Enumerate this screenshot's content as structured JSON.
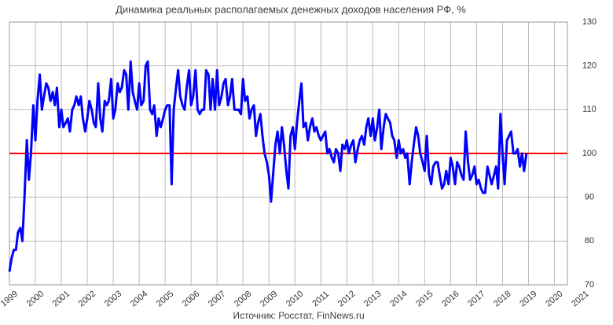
{
  "chart_data": {
    "type": "line",
    "title": "Динамика реальных располагаемых денежных доходов населения РФ, %",
    "source": "Источник: Росстат, FinNews.ru",
    "x": [
      1999,
      1999.08,
      1999.17,
      1999.25,
      1999.33,
      1999.42,
      1999.5,
      1999.58,
      1999.67,
      1999.75,
      1999.83,
      1999.92,
      2000,
      2000.08,
      2000.17,
      2000.25,
      2000.33,
      2000.42,
      2000.5,
      2000.58,
      2000.67,
      2000.75,
      2000.83,
      2000.92,
      2001,
      2001.08,
      2001.17,
      2001.25,
      2001.33,
      2001.42,
      2001.5,
      2001.58,
      2001.67,
      2001.75,
      2001.83,
      2001.92,
      2002,
      2002.08,
      2002.17,
      2002.25,
      2002.33,
      2002.42,
      2002.5,
      2002.58,
      2002.67,
      2002.75,
      2002.83,
      2002.92,
      2003,
      2003.08,
      2003.17,
      2003.25,
      2003.33,
      2003.42,
      2003.5,
      2003.58,
      2003.67,
      2003.75,
      2003.83,
      2003.92,
      2004,
      2004.08,
      2004.17,
      2004.25,
      2004.33,
      2004.42,
      2004.5,
      2004.58,
      2004.67,
      2004.75,
      2004.83,
      2004.92,
      2005,
      2005.08,
      2005.17,
      2005.25,
      2005.33,
      2005.42,
      2005.5,
      2005.58,
      2005.67,
      2005.75,
      2005.83,
      2005.92,
      2006,
      2006.08,
      2006.17,
      2006.25,
      2006.33,
      2006.42,
      2006.5,
      2006.58,
      2006.67,
      2006.75,
      2006.83,
      2006.92,
      2007,
      2007.08,
      2007.17,
      2007.25,
      2007.33,
      2007.42,
      2007.5,
      2007.58,
      2007.67,
      2007.75,
      2007.83,
      2007.92,
      2008,
      2008.08,
      2008.17,
      2008.25,
      2008.33,
      2008.42,
      2008.5,
      2008.58,
      2008.67,
      2008.75,
      2008.83,
      2008.92,
      2009,
      2009.08,
      2009.17,
      2009.25,
      2009.33,
      2009.42,
      2009.5,
      2009.58,
      2009.67,
      2009.75,
      2009.83,
      2009.92,
      2010,
      2010.08,
      2010.17,
      2010.25,
      2010.33,
      2010.42,
      2010.5,
      2010.58,
      2010.67,
      2010.75,
      2010.83,
      2010.92,
      2011,
      2011.08,
      2011.17,
      2011.25,
      2011.33,
      2011.42,
      2011.5,
      2011.58,
      2011.67,
      2011.75,
      2011.83,
      2011.92,
      2012,
      2012.08,
      2012.17,
      2012.25,
      2012.33,
      2012.42,
      2012.5,
      2012.58,
      2012.67,
      2012.75,
      2012.83,
      2012.92,
      2013,
      2013.08,
      2013.17,
      2013.25,
      2013.33,
      2013.42,
      2013.5,
      2013.58,
      2013.67,
      2013.75,
      2013.83,
      2013.92,
      2014,
      2014.08,
      2014.17,
      2014.25,
      2014.33,
      2014.42,
      2014.5,
      2014.58,
      2014.67,
      2014.75,
      2014.83,
      2014.92,
      2015,
      2015.08,
      2015.17,
      2015.25,
      2015.33,
      2015.42,
      2015.5,
      2015.58,
      2015.67,
      2015.75,
      2015.83,
      2015.92,
      2016,
      2016.08,
      2016.17,
      2016.25,
      2016.33,
      2016.42,
      2016.5,
      2016.58,
      2016.67,
      2016.75,
      2016.83,
      2016.92,
      2017,
      2017.08,
      2017.17,
      2017.25,
      2017.33,
      2017.42,
      2017.5,
      2017.58,
      2017.67,
      2017.75,
      2017.83,
      2017.92,
      2018,
      2018.08,
      2018.17,
      2018.25,
      2018.33,
      2018.42,
      2018.5,
      2018.58,
      2018.67,
      2018.75,
      2018.83,
      2018.92
    ],
    "series": [
      {
        "color": "#0000ff",
        "values": [
          73,
          76,
          78,
          78,
          82,
          83,
          80,
          90,
          103,
          94,
          100,
          111,
          103,
          112,
          118,
          110,
          113,
          116,
          115,
          112,
          114,
          111,
          115,
          106,
          110,
          106,
          107,
          108,
          105,
          110,
          111,
          113,
          111,
          113,
          108,
          105,
          108,
          112,
          110,
          107,
          106,
          116,
          108,
          105,
          112,
          111,
          112,
          117,
          108,
          110,
          116,
          114,
          115,
          119,
          118,
          110,
          121,
          114,
          112,
          110,
          116,
          111,
          112,
          120,
          121,
          110,
          109,
          111,
          104,
          108,
          106,
          108,
          110,
          111,
          111,
          93,
          110,
          115,
          119,
          113,
          111,
          110,
          115,
          119,
          111,
          113,
          119,
          110,
          109,
          110,
          110,
          119,
          118,
          110,
          117,
          110,
          119,
          111,
          113,
          116,
          117,
          111,
          113,
          117,
          110,
          110,
          110,
          109,
          117,
          112,
          113,
          108,
          110,
          111,
          104,
          107,
          109,
          104,
          100,
          98,
          95,
          89,
          96,
          102,
          105,
          100,
          106,
          102,
          96,
          92,
          104,
          106,
          101,
          107,
          112,
          116,
          106,
          107,
          103,
          106,
          108,
          105,
          106,
          104,
          103,
          104,
          105,
          100,
          101,
          99,
          98,
          101,
          100,
          96,
          102,
          101,
          103,
          100,
          102,
          103,
          98,
          101,
          103,
          104,
          102,
          106,
          108,
          104,
          108,
          103,
          106,
          110,
          101,
          106,
          109,
          108,
          107,
          104,
          103,
          99,
          103,
          100,
          101,
          99,
          100,
          93,
          98,
          102,
          106,
          104,
          100,
          98,
          96,
          104,
          95,
          93,
          97,
          98,
          98,
          95,
          92,
          93,
          96,
          93,
          99,
          97,
          93,
          98,
          97,
          95,
          94,
          105,
          98,
          94,
          95,
          97,
          93,
          94,
          92,
          91,
          91,
          97,
          95,
          93,
          95,
          97,
          92,
          109,
          100,
          93,
          103,
          104,
          105,
          100,
          100,
          101,
          97,
          100,
          96,
          100
        ]
      }
    ],
    "reference": {
      "value": 100,
      "color": "#ff0000"
    },
    "xlim": [
      1999,
      2020.5
    ],
    "xticks": [
      1999,
      2000,
      2001,
      2002,
      2003,
      2004,
      2005,
      2006,
      2007,
      2008,
      2009,
      2010,
      2011,
      2012,
      2013,
      2014,
      2015,
      2016,
      2017,
      2018,
      2019,
      2020,
      2021
    ],
    "ylim": [
      70,
      130
    ],
    "yticks": [
      70,
      80,
      90,
      100,
      110,
      120,
      130
    ],
    "grid": true
  }
}
